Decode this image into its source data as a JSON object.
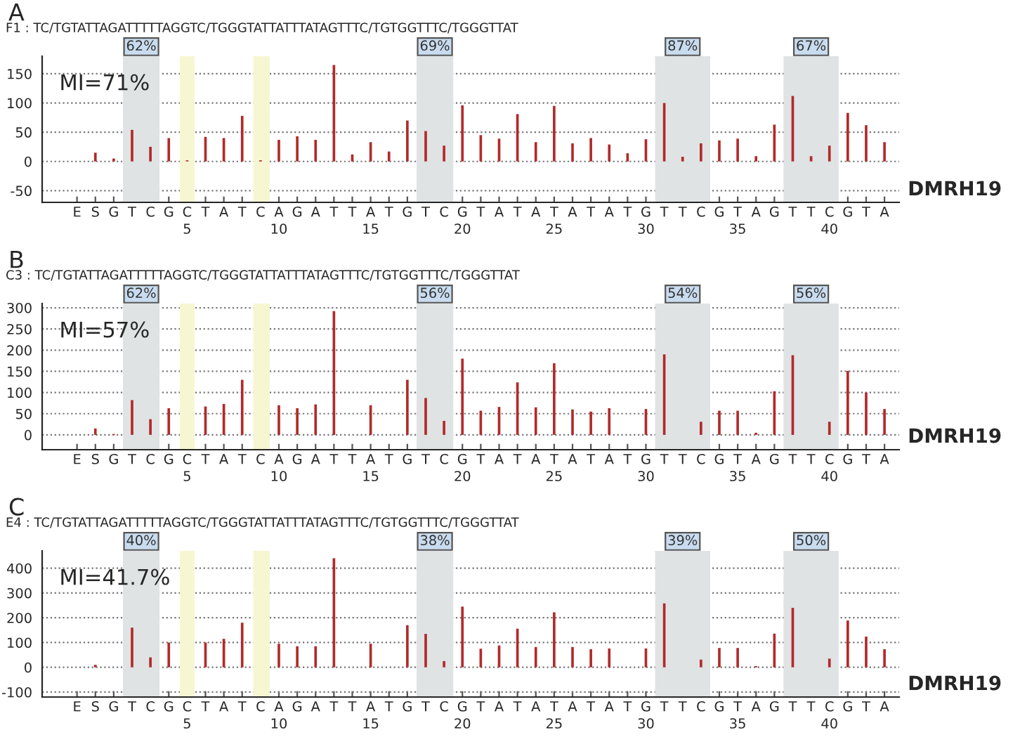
{
  "chart_data": [
    {
      "type": "bar",
      "title": "A",
      "subtitle": "F1 : TC/TGTATTAGATTTTTAGGTC/TGGGTATTATTTATAGTTTC/TGTGGTTTC/TGGGTTAT",
      "color": "#b22a2a",
      "categories": [
        "E",
        "S",
        "G",
        "T",
        "C",
        "G",
        "C",
        "T",
        "A",
        "T",
        "C",
        "A",
        "G",
        "A",
        "T",
        "T",
        "A",
        "T",
        "G",
        "T",
        "C",
        "G",
        "T",
        "A",
        "T",
        "A",
        "T",
        "A",
        "T",
        "A",
        "T",
        "G",
        "T",
        "T",
        "C",
        "G",
        "T",
        "A",
        "G",
        "T",
        "T",
        "C",
        "G",
        "T",
        "A"
      ],
      "values": [
        0,
        15,
        5,
        54,
        25,
        40,
        2,
        42,
        40,
        78,
        2,
        37,
        43,
        37,
        165,
        12,
        33,
        17,
        70,
        52,
        27,
        96,
        45,
        39,
        81,
        33,
        95,
        31,
        40,
        29,
        14,
        38,
        100,
        8,
        31,
        36,
        39,
        9,
        63,
        112,
        9,
        27,
        83,
        62,
        33
      ],
      "ylim": [
        -70,
        180
      ],
      "yticks": [
        -50,
        0,
        50,
        100,
        150
      ],
      "grid": "y",
      "x2lim": [
        -2.9,
        43.8
      ],
      "x2ticks": [
        5,
        10,
        15,
        20,
        25,
        30,
        35,
        40
      ],
      "bands": [
        {
          "axis": "x2",
          "from": 1.5,
          "to": 3.5,
          "label": "62%",
          "color": "#dfe3e4"
        },
        {
          "axis": "x2",
          "from": 4.6,
          "to": 5.4,
          "label": null,
          "color": "#f7f6d2"
        },
        {
          "axis": "x2",
          "from": 8.6,
          "to": 9.5,
          "label": null,
          "color": "#f7f6d2"
        },
        {
          "axis": "x2",
          "from": 17.5,
          "to": 19.5,
          "label": "69%",
          "color": "#dfe3e4"
        },
        {
          "axis": "x2",
          "from": 30.5,
          "to": 33.5,
          "label": "87%",
          "color": "#dfe3e4"
        },
        {
          "axis": "x2",
          "from": 37.5,
          "to": 40.5,
          "label": "67%",
          "color": "#dfe3e4"
        }
      ],
      "annotations": [
        "MI=71%",
        "DMRH19"
      ]
    },
    {
      "type": "bar",
      "title": "B",
      "subtitle": "C3 : TC/TGTATTAGATTTTTAGGTC/TGGGTATTATTTATAGTTTC/TGTGGTTTC/TGGGTTAT",
      "color": "#b22a2a",
      "categories": [
        "E",
        "S",
        "G",
        "T",
        "C",
        "G",
        "C",
        "T",
        "A",
        "T",
        "C",
        "A",
        "G",
        "A",
        "T",
        "T",
        "A",
        "T",
        "G",
        "T",
        "C",
        "G",
        "T",
        "A",
        "T",
        "A",
        "T",
        "A",
        "T",
        "A",
        "T",
        "G",
        "T",
        "T",
        "C",
        "G",
        "T",
        "A",
        "G",
        "T",
        "T",
        "C",
        "G",
        "T",
        "A"
      ],
      "values": [
        0,
        15,
        2,
        82,
        37,
        63,
        0,
        67,
        73,
        130,
        0,
        70,
        63,
        72,
        292,
        0,
        70,
        0,
        130,
        87,
        33,
        180,
        57,
        66,
        124,
        65,
        169,
        60,
        55,
        63,
        0,
        61,
        190,
        0,
        31,
        57,
        57,
        5,
        103,
        188,
        0,
        31,
        151,
        100,
        61
      ],
      "ylim": [
        -35,
        310
      ],
      "yticks": [
        0,
        50,
        100,
        150,
        200,
        250,
        300
      ],
      "grid": "y",
      "x2lim": [
        -2.9,
        43.8
      ],
      "x2ticks": [
        5,
        10,
        15,
        20,
        25,
        30,
        35,
        40
      ],
      "bands": [
        {
          "axis": "x2",
          "from": 1.5,
          "to": 3.5,
          "label": "62%",
          "color": "#dfe3e4"
        },
        {
          "axis": "x2",
          "from": 4.6,
          "to": 5.4,
          "label": null,
          "color": "#f7f6d2"
        },
        {
          "axis": "x2",
          "from": 8.6,
          "to": 9.5,
          "label": null,
          "color": "#f7f6d2"
        },
        {
          "axis": "x2",
          "from": 17.5,
          "to": 19.5,
          "label": "56%",
          "color": "#dfe3e4"
        },
        {
          "axis": "x2",
          "from": 30.5,
          "to": 33.5,
          "label": "54%",
          "color": "#dfe3e4"
        },
        {
          "axis": "x2",
          "from": 37.5,
          "to": 40.5,
          "label": "56%",
          "color": "#dfe3e4"
        }
      ],
      "annotations": [
        "MI=57%",
        "DMRH19"
      ]
    },
    {
      "type": "bar",
      "title": "C",
      "subtitle": "E4 : TC/TGTATTAGATTTTTAGGTC/TGGGTATTATTTATAGTTTC/TGTGGTTTC/TGGGTTAT",
      "color": "#b22a2a",
      "categories": [
        "E",
        "S",
        "G",
        "T",
        "C",
        "G",
        "C",
        "T",
        "A",
        "T",
        "C",
        "A",
        "G",
        "A",
        "T",
        "T",
        "A",
        "T",
        "G",
        "T",
        "C",
        "G",
        "T",
        "A",
        "T",
        "A",
        "T",
        "A",
        "T",
        "A",
        "T",
        "G",
        "T",
        "T",
        "C",
        "G",
        "T",
        "A",
        "G",
        "T",
        "T",
        "C",
        "G",
        "T",
        "A"
      ],
      "values": [
        0,
        10,
        0,
        160,
        40,
        100,
        0,
        100,
        115,
        180,
        0,
        95,
        85,
        85,
        440,
        0,
        95,
        0,
        170,
        135,
        25,
        245,
        75,
        88,
        156,
        82,
        222,
        82,
        73,
        76,
        0,
        76,
        258,
        0,
        31,
        78,
        78,
        5,
        136,
        240,
        0,
        35,
        189,
        124,
        73
      ],
      "ylim": [
        -120,
        470
      ],
      "yticks": [
        -100,
        0,
        100,
        200,
        300,
        400
      ],
      "grid": "y",
      "x2lim": [
        -2.9,
        43.8
      ],
      "x2ticks": [
        5,
        10,
        15,
        20,
        25,
        30,
        35,
        40
      ],
      "bands": [
        {
          "axis": "x2",
          "from": 1.5,
          "to": 3.5,
          "label": "40%",
          "color": "#dfe3e4"
        },
        {
          "axis": "x2",
          "from": 4.6,
          "to": 5.4,
          "label": null,
          "color": "#f7f6d2"
        },
        {
          "axis": "x2",
          "from": 8.6,
          "to": 9.5,
          "label": null,
          "color": "#f7f6d2"
        },
        {
          "axis": "x2",
          "from": 17.5,
          "to": 19.5,
          "label": "38%",
          "color": "#dfe3e4"
        },
        {
          "axis": "x2",
          "from": 30.5,
          "to": 33.5,
          "label": "39%",
          "color": "#dfe3e4"
        },
        {
          "axis": "x2",
          "from": 37.5,
          "to": 40.5,
          "label": "50%",
          "color": "#dfe3e4"
        }
      ],
      "annotations": [
        "MI=41.7%",
        "DMRH19"
      ]
    }
  ]
}
